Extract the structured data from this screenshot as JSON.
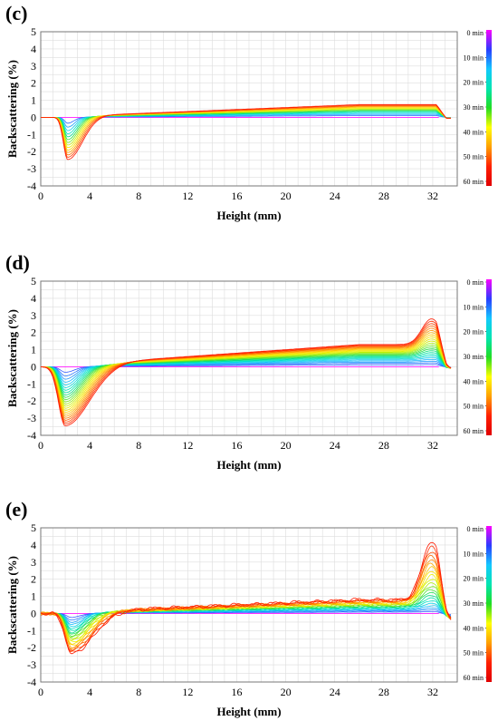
{
  "panels": [
    {
      "label": "(c)",
      "chart_data": {
        "type": "line",
        "xlabel": "Height (mm)",
        "ylabel": "Backscattering (%)",
        "xlim": [
          0,
          34
        ],
        "ylim": [
          -4,
          5
        ],
        "xticks": [
          "0",
          "4",
          "8",
          "12",
          "16",
          "20",
          "24",
          "28",
          "32"
        ],
        "yticks": [
          "5",
          "4",
          "3",
          "2",
          "1",
          "0",
          "-1",
          "-2",
          "-3",
          "-4"
        ],
        "grid": true,
        "legend_labels": [
          "0 min",
          "10 min",
          "20 min",
          "30 min",
          "40 min",
          "50 min",
          "60 min"
        ],
        "curves": 14,
        "features": {
          "dip_depth": 2.5,
          "dip_center": 2.2,
          "dip_width": 0.9,
          "dip_tail": 3.2,
          "plateau": 0.75,
          "peak_height": 0,
          "end_drop": 0.8,
          "noise": 0.0
        }
      }
    },
    {
      "label": "(d)",
      "chart_data": {
        "type": "line",
        "xlabel": "Height (mm)",
        "ylabel": "Backscattering (%)",
        "xlim": [
          0,
          34
        ],
        "ylim": [
          -4,
          5
        ],
        "xticks": [
          "0",
          "4",
          "8",
          "12",
          "16",
          "20",
          "24",
          "28",
          "32"
        ],
        "yticks": [
          "5",
          "4",
          "3",
          "2",
          "1",
          "0",
          "-1",
          "-2",
          "-3",
          "-4"
        ],
        "grid": true,
        "legend_labels": [
          "0 min",
          "10 min",
          "20 min",
          "30 min",
          "40 min",
          "50 min",
          "60 min"
        ],
        "curves": 24,
        "features": {
          "dip_depth": 3.5,
          "dip_center": 2.0,
          "dip_width": 1.4,
          "dip_tail": 6.0,
          "plateau": 1.3,
          "peak_height": 1.5,
          "end_drop": 1.2,
          "noise": 0.0
        }
      }
    },
    {
      "label": "(e)",
      "chart_data": {
        "type": "line",
        "xlabel": "Height (mm)",
        "ylabel": "Backscattering (%)",
        "xlim": [
          0,
          34
        ],
        "ylim": [
          -4,
          5
        ],
        "xticks": [
          "0",
          "4",
          "8",
          "12",
          "16",
          "20",
          "24",
          "28",
          "32"
        ],
        "yticks": [
          "5",
          "4",
          "3",
          "2",
          "1",
          "0",
          "-1",
          "-2",
          "-3",
          "-4"
        ],
        "grid": true,
        "legend_labels": [
          "0 min",
          "10 min",
          "20 min",
          "30 min",
          "40 min",
          "50 min",
          "60 min"
        ],
        "curves": 22,
        "features": {
          "dip_depth": 2.4,
          "dip_center": 2.5,
          "dip_width": 1.3,
          "dip_tail": 5.0,
          "plateau": 0.8,
          "peak_height": 3.4,
          "end_drop": 0.9,
          "noise": 0.12
        }
      }
    }
  ],
  "colors": {
    "zero_line": "#ff33ff",
    "grid": "#dddddd",
    "colorbar": [
      "#ff00ff",
      "#2a3cff",
      "#14c8ff",
      "#00e5b0",
      "#22dd22",
      "#ffff00",
      "#ffa000",
      "#ff2000",
      "#e00000"
    ]
  }
}
